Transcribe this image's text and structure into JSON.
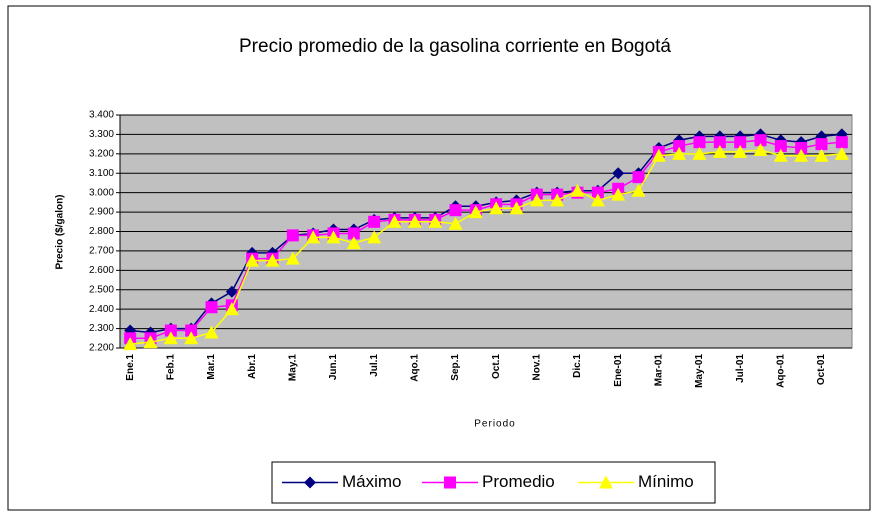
{
  "chart_data": {
    "type": "line",
    "title": "Precio promedio de la gasolina corriente en Bogotá",
    "x_label": "Periodo",
    "y_label": "Precio ($/galon)",
    "categories": [
      "Ene.1",
      null,
      "Feb.1",
      null,
      "Mar.1",
      null,
      "Abr.1",
      null,
      "May.1",
      null,
      "Jun.1",
      null,
      "Jul.1",
      null,
      "Aqo.1",
      null,
      "Sep.1",
      null,
      "Oct.1",
      null,
      "Nov.1",
      null,
      "Dic.1",
      null,
      "Ene-01",
      null,
      "Mar-01",
      null,
      "May-01",
      null,
      "Jul-01",
      null,
      "Aqo-01",
      null,
      "Oct-01",
      null
    ],
    "series": [
      {
        "name": "Máximo",
        "color": "#000080",
        "marker": "diamond",
        "values": [
          2290,
          2280,
          2300,
          2300,
          2430,
          2490,
          2690,
          2690,
          2780,
          2790,
          2810,
          2810,
          2860,
          2870,
          2870,
          2870,
          2930,
          2930,
          2950,
          2960,
          3000,
          3000,
          3010,
          3010,
          3100,
          3100,
          3230,
          3270,
          3290,
          3290,
          3290,
          3300,
          3270,
          3260,
          3290,
          3300
        ]
      },
      {
        "name": "Promedio",
        "color": "#ff00ff",
        "marker": "square",
        "values": [
          2250,
          2250,
          2290,
          2290,
          2410,
          2420,
          2660,
          2660,
          2780,
          2780,
          2790,
          2790,
          2850,
          2860,
          2860,
          2860,
          2910,
          2910,
          2940,
          2940,
          2990,
          2990,
          3000,
          3000,
          3020,
          3080,
          3210,
          3240,
          3260,
          3260,
          3260,
          3270,
          3240,
          3230,
          3250,
          3260
        ]
      },
      {
        "name": "Mínimo",
        "color": "#ffff00",
        "marker": "triangle",
        "values": [
          2220,
          2230,
          2250,
          2250,
          2280,
          2400,
          2650,
          2650,
          2660,
          2770,
          2770,
          2740,
          2770,
          2850,
          2850,
          2850,
          2840,
          2900,
          2920,
          2920,
          2960,
          2960,
          3010,
          2960,
          2990,
          3010,
          3190,
          3200,
          3200,
          3210,
          3210,
          3220,
          3190,
          3190,
          3190,
          3200
        ]
      }
    ],
    "ylim": [
      2200,
      3400
    ],
    "yticks": [
      {
        "value": 2200,
        "label": "2.200"
      },
      {
        "value": 2300,
        "label": "2.300"
      },
      {
        "value": 2400,
        "label": "2.400"
      },
      {
        "value": 2500,
        "label": "2.500"
      },
      {
        "value": 2600,
        "label": "2.600"
      },
      {
        "value": 2700,
        "label": "2.700"
      },
      {
        "value": 2800,
        "label": "2.800"
      },
      {
        "value": 2900,
        "label": "2.900"
      },
      {
        "value": 3000,
        "label": "3.000"
      },
      {
        "value": 3100,
        "label": "3.100"
      },
      {
        "value": 3200,
        "label": "3.200"
      },
      {
        "value": 3300,
        "label": "3.300"
      },
      {
        "value": 3400,
        "label": "3.400"
      }
    ],
    "grid": true,
    "legend": "bottom"
  }
}
